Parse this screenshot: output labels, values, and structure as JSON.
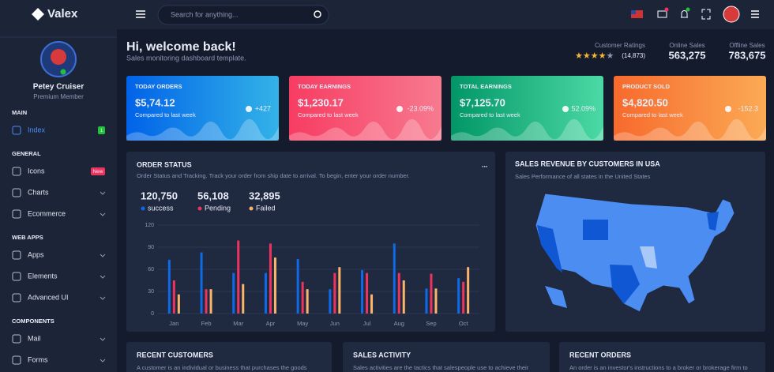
{
  "brand": "Valex",
  "user": {
    "name": "Petey Cruiser",
    "role": "Premium Member"
  },
  "nav": [
    {
      "section": "MAIN",
      "items": [
        {
          "label": "Index",
          "badge": "1"
        }
      ]
    },
    {
      "section": "GENERAL",
      "items": [
        {
          "label": "Icons",
          "badge": "New"
        },
        {
          "label": "Charts"
        },
        {
          "label": "Ecommerce"
        }
      ]
    },
    {
      "section": "WEB APPS",
      "items": [
        {
          "label": "Apps"
        },
        {
          "label": "Elements"
        },
        {
          "label": "Advanced UI"
        }
      ]
    },
    {
      "section": "COMPONENTS",
      "items": [
        {
          "label": "Mail"
        },
        {
          "label": "Forms"
        }
      ]
    }
  ],
  "search_placeholder": "Search for anything...",
  "header": {
    "title": "Hi, welcome back!",
    "subtitle": "Sales monitoring dashboard template."
  },
  "stats": {
    "ratings_label": "Customer Ratings",
    "ratings_count": "(14,873)",
    "online_label": "Online Sales",
    "online_value": "563,275",
    "offline_label": "Offline Sales",
    "offline_value": "783,675"
  },
  "kpis": [
    {
      "title": "TODAY ORDERS",
      "value": "$5,74.12",
      "note": "Compared to last week",
      "change": "+427"
    },
    {
      "title": "TODAY EARNINGS",
      "value": "$1,230.17",
      "note": "Compared to last week",
      "change": "-23.09%"
    },
    {
      "title": "TOTAL EARNINGS",
      "value": "$7,125.70",
      "note": "Compared to last week",
      "change": "52.09%"
    },
    {
      "title": "PRODUCT SOLD",
      "value": "$4,820.50",
      "note": "Compared to last week",
      "change": "-152.3"
    }
  ],
  "order_status": {
    "title": "ORDER STATUS",
    "more": "...",
    "description": "Order Status and Tracking. Track your order from ship date to arrival. To begin, enter your order number.",
    "totals": [
      {
        "value": "120,750",
        "label": "success"
      },
      {
        "value": "56,108",
        "label": "Pending"
      },
      {
        "value": "32,895",
        "label": "Failed"
      }
    ]
  },
  "chart_data": {
    "type": "bar",
    "categories": [
      "Jan",
      "Feb",
      "Mar",
      "Apr",
      "May",
      "Jun",
      "Jul",
      "Aug",
      "Sep",
      "Oct"
    ],
    "series": [
      {
        "color": "#0f6ae8",
        "values": [
          73,
          83,
          55,
          55,
          74,
          33,
          59,
          95,
          34,
          48
        ]
      },
      {
        "color": "#ee335e",
        "values": [
          45,
          33,
          99,
          95,
          43,
          55,
          55,
          55,
          54,
          43
        ]
      },
      {
        "color": "#fbb568",
        "values": [
          26,
          33,
          40,
          76,
          33,
          63,
          26,
          45,
          34,
          63
        ]
      }
    ],
    "ylim": [
      0,
      120
    ],
    "yticks": [
      0,
      30,
      60,
      90,
      120
    ],
    "grid": true
  },
  "map": {
    "title": "SALES REVENUE BY CUSTOMERS IN USA",
    "subtitle": "Sales Performance of all states in the United States"
  },
  "bottom": [
    {
      "title": "RECENT CUSTOMERS",
      "description": "A customer is an individual or business that purchases the goods"
    },
    {
      "title": "SALES ACTIVITY",
      "description": "Sales activities are the tactics that salespeople use to achieve their"
    },
    {
      "title": "RECENT ORDERS",
      "description": "An order is an investor's instructions to a broker or brokerage firm to"
    }
  ]
}
